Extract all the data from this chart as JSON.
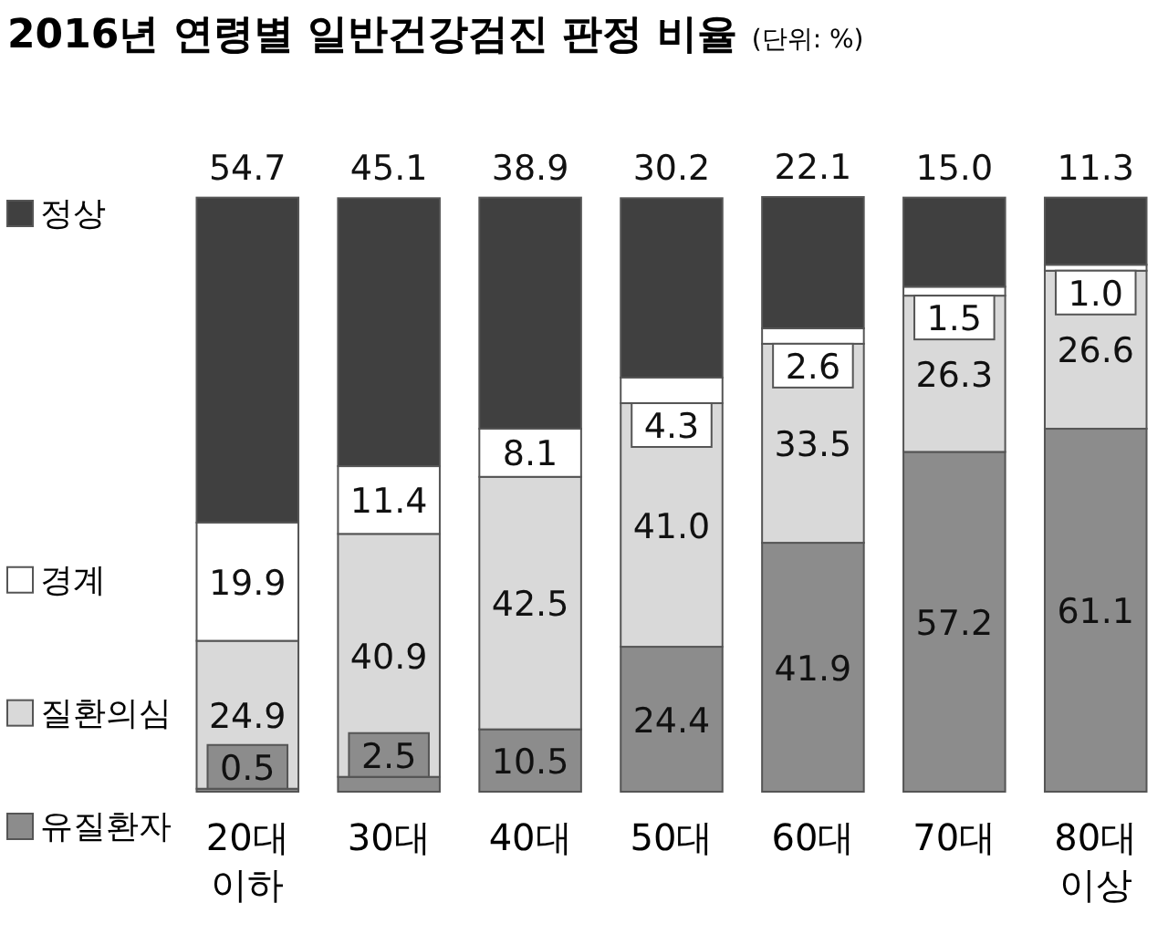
{
  "chart_data": {
    "type": "bar",
    "stacked": true,
    "title": "2016년 연령별 일반건강검진 판정 비율",
    "subtitle": "(단위: %)",
    "legend": "left",
    "categories": [
      "20대 이하",
      "30대",
      "40대",
      "50대",
      "60대",
      "70대",
      "80대 이상"
    ],
    "series": [
      {
        "name": "유질환자",
        "color": "#8c8c8c",
        "values": [
          0.5,
          2.5,
          10.5,
          24.4,
          41.9,
          57.2,
          61.1
        ],
        "value_labels": [
          "0.5",
          "2.5",
          "10.5",
          "24.4",
          "41.9",
          "57.2",
          "61.1"
        ]
      },
      {
        "name": "질환의심",
        "color": "#d9d9d9",
        "values": [
          24.9,
          40.9,
          42.5,
          41.0,
          33.5,
          26.3,
          26.6
        ],
        "value_labels": [
          "24.9",
          "40.9",
          "42.5",
          "41.0",
          "33.5",
          "26.3",
          "26.6"
        ]
      },
      {
        "name": "경계",
        "color": "#ffffff",
        "values": [
          19.9,
          11.4,
          8.1,
          4.3,
          2.6,
          1.5,
          1.0
        ],
        "value_labels": [
          "19.9",
          "11.4",
          "8.1",
          "4.3",
          "2.6",
          "1.5",
          "1.0"
        ]
      },
      {
        "name": "정상",
        "color": "#404040",
        "values": [
          54.7,
          45.1,
          38.9,
          30.2,
          22.1,
          15.0,
          11.3
        ],
        "value_labels": [
          "54.7",
          "45.1",
          "38.9",
          "30.2",
          "22.1",
          "15.0",
          "11.3"
        ]
      }
    ]
  }
}
